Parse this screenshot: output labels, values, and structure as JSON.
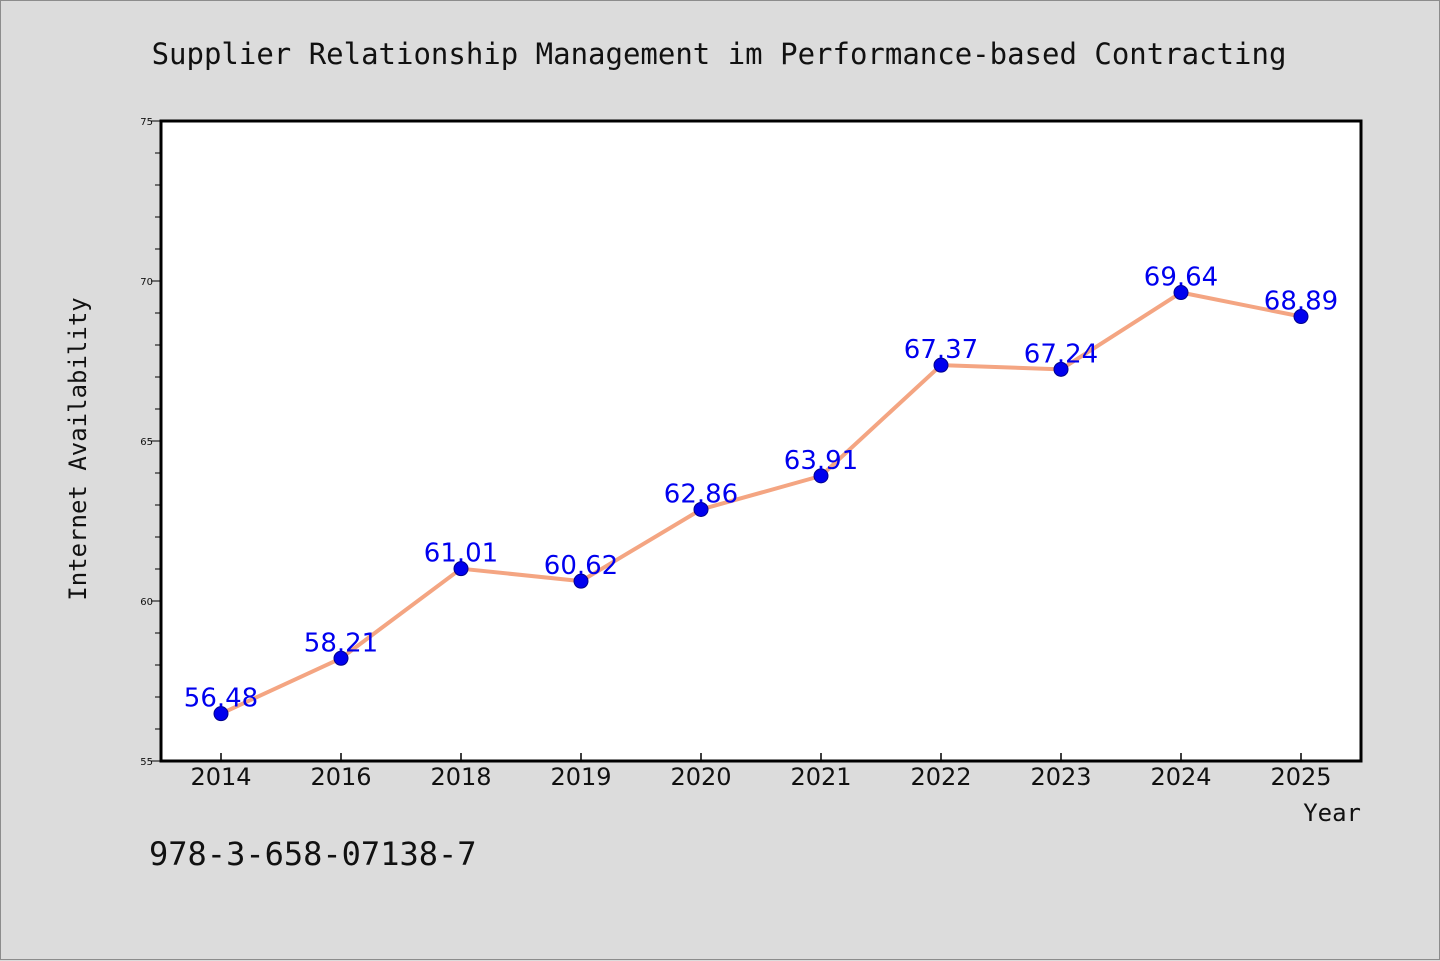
{
  "chart_data": {
    "type": "line",
    "title": "Supplier Relationship Management im Performance-based Contracting",
    "xlabel": "Year",
    "ylabel": "Internet Availability",
    "categories": [
      "2014",
      "2016",
      "2018",
      "2019",
      "2020",
      "2021",
      "2022",
      "2023",
      "2024",
      "2025"
    ],
    "series": [
      {
        "values": [
          56.48,
          58.21,
          61.01,
          60.62,
          62.86,
          63.91,
          67.37,
          67.24,
          69.64,
          68.89
        ],
        "labels": [
          "56.48",
          "58.21",
          "61.01",
          "60.62",
          "62.86",
          "63.91",
          "67.37",
          "67.24",
          "69.64",
          "68.89"
        ]
      }
    ],
    "ylim": [
      55,
      75
    ],
    "yticks": [
      "55",
      "60",
      "65",
      "70",
      "75"
    ],
    "grid": false,
    "line_color": "#f4a582",
    "marker_color": "#0000ee",
    "label_color": "#0000ee"
  },
  "footer_text": "978-3-658-07138-7"
}
